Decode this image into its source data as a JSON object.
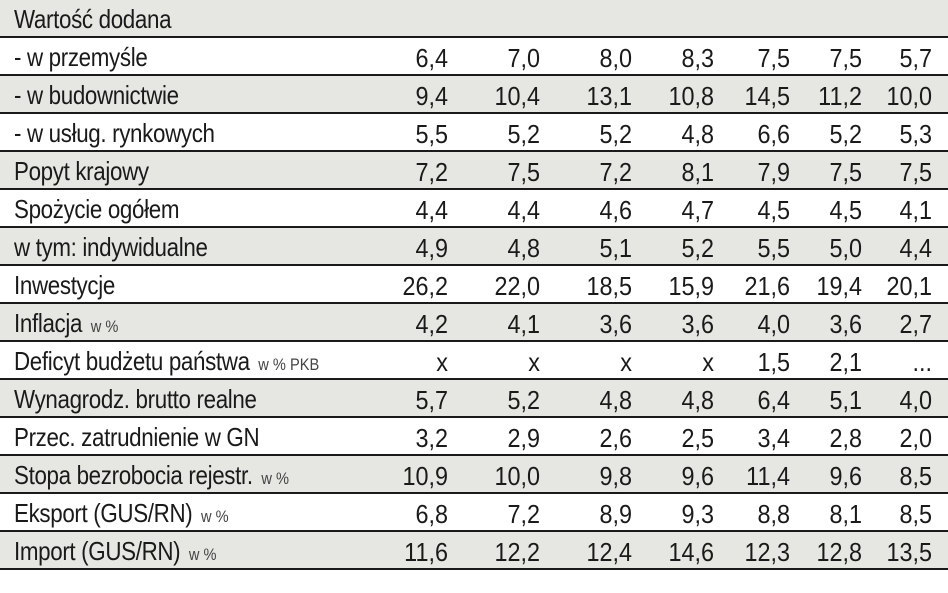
{
  "table": {
    "title": "Wartość dodana",
    "rows": [
      {
        "label": "- w przemyśle",
        "unit": "",
        "values": [
          "6,4",
          "7,0",
          "8,0",
          "8,3",
          "7,5",
          "7,5",
          "5,7"
        ]
      },
      {
        "label": "- w budownictwie",
        "unit": "",
        "values": [
          "9,4",
          "10,4",
          "13,1",
          "10,8",
          "14,5",
          "11,2",
          "10,0"
        ]
      },
      {
        "label": "- w usług. rynkowych",
        "unit": "",
        "values": [
          "5,5",
          "5,2",
          "5,2",
          "4,8",
          "6,6",
          "5,2",
          "5,3"
        ]
      },
      {
        "label": "Popyt krajowy",
        "unit": "",
        "values": [
          "7,2",
          "7,5",
          "7,2",
          "8,1",
          "7,9",
          "7,5",
          "7,5"
        ]
      },
      {
        "label": "Spożycie ogółem",
        "unit": "",
        "values": [
          "4,4",
          "4,4",
          "4,6",
          "4,7",
          "4,5",
          "4,5",
          "4,1"
        ]
      },
      {
        "label": "w tym: indywidualne",
        "unit": "",
        "values": [
          "4,9",
          "4,8",
          "5,1",
          "5,2",
          "5,5",
          "5,0",
          "4,4"
        ]
      },
      {
        "label": "Inwestycje",
        "unit": "",
        "values": [
          "26,2",
          "22,0",
          "18,5",
          "15,9",
          "21,6",
          "19,4",
          "20,1"
        ]
      },
      {
        "label": "Inflacja",
        "unit": "w %",
        "values": [
          "4,2",
          "4,1",
          "3,6",
          "3,6",
          "4,0",
          "3,6",
          "2,7"
        ]
      },
      {
        "label": "Deficyt budżetu państwa",
        "unit": "w % PKB",
        "values": [
          "x",
          "x",
          "x",
          "x",
          "1,5",
          "2,1",
          "..."
        ]
      },
      {
        "label": "Wynagrodz. brutto realne",
        "unit": "",
        "values": [
          "5,7",
          "5,2",
          "4,8",
          "4,8",
          "6,4",
          "5,1",
          "4,0"
        ]
      },
      {
        "label": "Przec. zatrudnienie w GN",
        "unit": "",
        "values": [
          "3,2",
          "2,9",
          "2,6",
          "2,5",
          "3,4",
          "2,8",
          "2,0"
        ]
      },
      {
        "label": "Stopa bezrobocia rejestr.",
        "unit": "w %",
        "values": [
          "10,9",
          "10,0",
          "9,8",
          "9,6",
          "11,4",
          "9,6",
          "8,5"
        ]
      },
      {
        "label": "Eksport (GUS/RN)",
        "unit": "w %",
        "values": [
          "6,8",
          "7,2",
          "8,9",
          "9,3",
          "8,8",
          "8,1",
          "8,5"
        ]
      },
      {
        "label": "Import (GUS/RN)",
        "unit": "w %",
        "values": [
          "11,6",
          "12,2",
          "12,4",
          "14,6",
          "12,3",
          "12,8",
          "13,5"
        ]
      }
    ]
  }
}
